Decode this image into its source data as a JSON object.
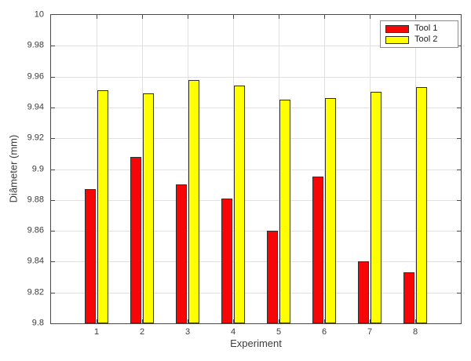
{
  "chart_data": {
    "type": "bar",
    "title": "",
    "xlabel": "Experiment",
    "ylabel": "Diâmeter (mm)",
    "categories": [
      "1",
      "2",
      "3",
      "4",
      "5",
      "6",
      "7",
      "8"
    ],
    "series": [
      {
        "name": "Tool 1",
        "color": "#f60606",
        "values": [
          9.887,
          9.908,
          9.89,
          9.881,
          9.86,
          9.895,
          9.84,
          9.833
        ]
      },
      {
        "name": "Tool 2",
        "color": "#ffff00",
        "values": [
          9.951,
          9.949,
          9.958,
          9.954,
          9.945,
          9.946,
          9.95,
          9.953
        ]
      }
    ],
    "ylim": [
      9.8,
      10
    ],
    "ytick_step": 0.02,
    "ytick_labels": [
      "9.8",
      "9.82",
      "9.84",
      "9.86",
      "9.88",
      "9.9",
      "9.92",
      "9.94",
      "9.96",
      "9.98",
      "10"
    ],
    "grid": "on",
    "legend_position": "top-right",
    "colors": {
      "axis": "#4a4a4a",
      "grid": "#e0e0e0",
      "bar_edge": "#2e2e2e",
      "tick_text": "#3d3d3d",
      "background": "#ffffff"
    }
  }
}
